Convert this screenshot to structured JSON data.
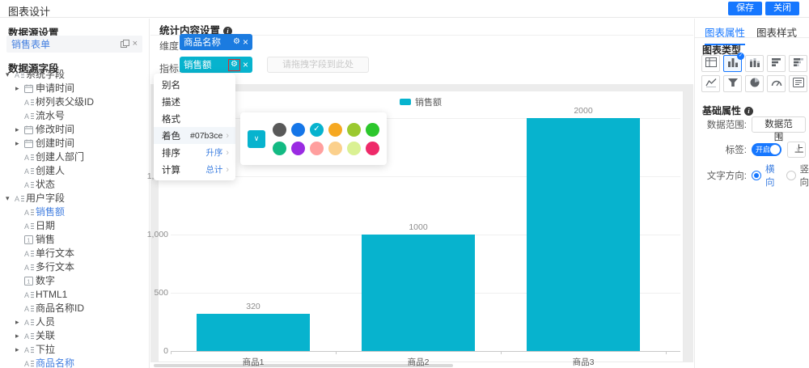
{
  "header": {
    "title": "图表设计",
    "save_label": "保存",
    "close_label": "关闭"
  },
  "colors": {
    "accent": "#1677ff",
    "chip_dimension": "#1b7be0",
    "chip_metric": "#07b3ce",
    "bar": "#07b3ce",
    "annotation_red": "#e02a2a"
  },
  "icons": {
    "gear": "⚙",
    "close": "×",
    "caret_down": "▾",
    "caret_right": "▸",
    "check": "✓",
    "chevron_down": "∨",
    "arrow": "›",
    "info": "i"
  },
  "sidebar": {
    "datasource_title": "数据源设置",
    "datasource_name": "销售表单",
    "fields_title": "数据源字段",
    "tree": [
      {
        "label": "系统字段",
        "level": 0,
        "caret": "down",
        "icon": "field"
      },
      {
        "label": "申请时间",
        "level": 1,
        "caret": "right",
        "icon": "calendar"
      },
      {
        "label": "树列表父级ID",
        "level": 1,
        "caret": "none",
        "icon": "field"
      },
      {
        "label": "流水号",
        "level": 1,
        "caret": "none",
        "icon": "field"
      },
      {
        "label": "修改时间",
        "level": 1,
        "caret": "right",
        "icon": "calendar"
      },
      {
        "label": "创建时间",
        "level": 1,
        "caret": "right",
        "icon": "calendar"
      },
      {
        "label": "创建人部门",
        "level": 1,
        "caret": "none",
        "icon": "field"
      },
      {
        "label": "创建人",
        "level": 1,
        "caret": "none",
        "icon": "field"
      },
      {
        "label": "状态",
        "level": 1,
        "caret": "none",
        "icon": "field"
      },
      {
        "label": "用户字段",
        "level": 0,
        "caret": "down",
        "icon": "field"
      },
      {
        "label": "销售额",
        "level": 1,
        "caret": "none",
        "icon": "field",
        "active": true
      },
      {
        "label": "日期",
        "level": 1,
        "caret": "none",
        "icon": "field"
      },
      {
        "label": "销售",
        "level": 1,
        "caret": "none",
        "icon": "number"
      },
      {
        "label": "单行文本",
        "level": 1,
        "caret": "none",
        "icon": "field"
      },
      {
        "label": "多行文本",
        "level": 1,
        "caret": "none",
        "icon": "field"
      },
      {
        "label": "数字",
        "level": 1,
        "caret": "none",
        "icon": "number"
      },
      {
        "label": "HTML1",
        "level": 1,
        "caret": "none",
        "icon": "field"
      },
      {
        "label": "商品名称ID",
        "level": 1,
        "caret": "none",
        "icon": "field"
      },
      {
        "label": "人员",
        "level": 1,
        "caret": "right",
        "icon": "field"
      },
      {
        "label": "关联",
        "level": 1,
        "caret": "right",
        "icon": "field"
      },
      {
        "label": "下拉",
        "level": 1,
        "caret": "right",
        "icon": "field"
      },
      {
        "label": "商品名称",
        "level": 1,
        "caret": "none",
        "icon": "field",
        "active": true
      }
    ]
  },
  "stats": {
    "title": "统计内容设置",
    "dimension_label": "维度:",
    "dimension_chip": "商品名称",
    "metric_label": "指标:",
    "metric_chip": "销售额",
    "drop_placeholder": "请拖拽字段到此处"
  },
  "menu": {
    "items": [
      {
        "label": "别名"
      },
      {
        "label": "描述"
      },
      {
        "label": "格式"
      },
      {
        "label": "着色",
        "value": "#07b3ce",
        "value_blue": false,
        "arrow": true,
        "highlighted": true
      },
      {
        "label": "排序",
        "value": "升序",
        "value_blue": true,
        "arrow": true
      },
      {
        "label": "计算",
        "value": "总计",
        "value_blue": true,
        "arrow": true
      }
    ]
  },
  "palette": {
    "selected": "#07b3ce",
    "checked_index": 2,
    "colors": [
      "#595959",
      "#1576e8",
      "#07b3ce",
      "#f6a821",
      "#9bc92f",
      "#2cc72c",
      "#13ba83",
      "#9a2be2",
      "#ff9f9e",
      "#fbd08c",
      "#daf193",
      "#ee2a69"
    ]
  },
  "chart_data": {
    "type": "bar",
    "title": "",
    "categories": [
      "商品1",
      "商品2",
      "商品3"
    ],
    "series": [
      {
        "name": "销售额",
        "color": "#07b3ce",
        "values": [
          320,
          1000,
          2000
        ]
      }
    ],
    "value_labels": [
      "320",
      "1000",
      "2000"
    ],
    "ylim": [
      0,
      2000
    ],
    "y_ticks": [
      {
        "value": 0,
        "label": "0"
      },
      {
        "value": 500,
        "label": "500"
      },
      {
        "value": 1000,
        "label": "1,000"
      },
      {
        "value": 1500,
        "label": "1,500"
      },
      {
        "value": 2000,
        "label": ""
      }
    ],
    "grid": true,
    "legend_position": "top"
  },
  "right_panel": {
    "tabs": [
      {
        "label": "图表属性",
        "active": true
      },
      {
        "label": "图表样式",
        "active": false
      }
    ],
    "chart_type_title": "图表类型",
    "chart_types": [
      "pivot-table",
      "bar",
      "stacked-bar",
      "horizontal-bar",
      "horizontal-stacked-bar",
      "line",
      "funnel",
      "pie",
      "gauge",
      "detail-card"
    ],
    "selected_chart_type": 1,
    "basic_title": "基础属性",
    "rows": {
      "data_range_label": "数据范围:",
      "data_range_button": "数据范围",
      "label_label": "标签:",
      "toggle_on_text": "开启",
      "label_position_value": "上",
      "text_direction_label": "文字方向:",
      "direction_options": [
        {
          "label": "横向",
          "selected": true
        },
        {
          "label": "竖向",
          "selected": false
        }
      ]
    }
  }
}
